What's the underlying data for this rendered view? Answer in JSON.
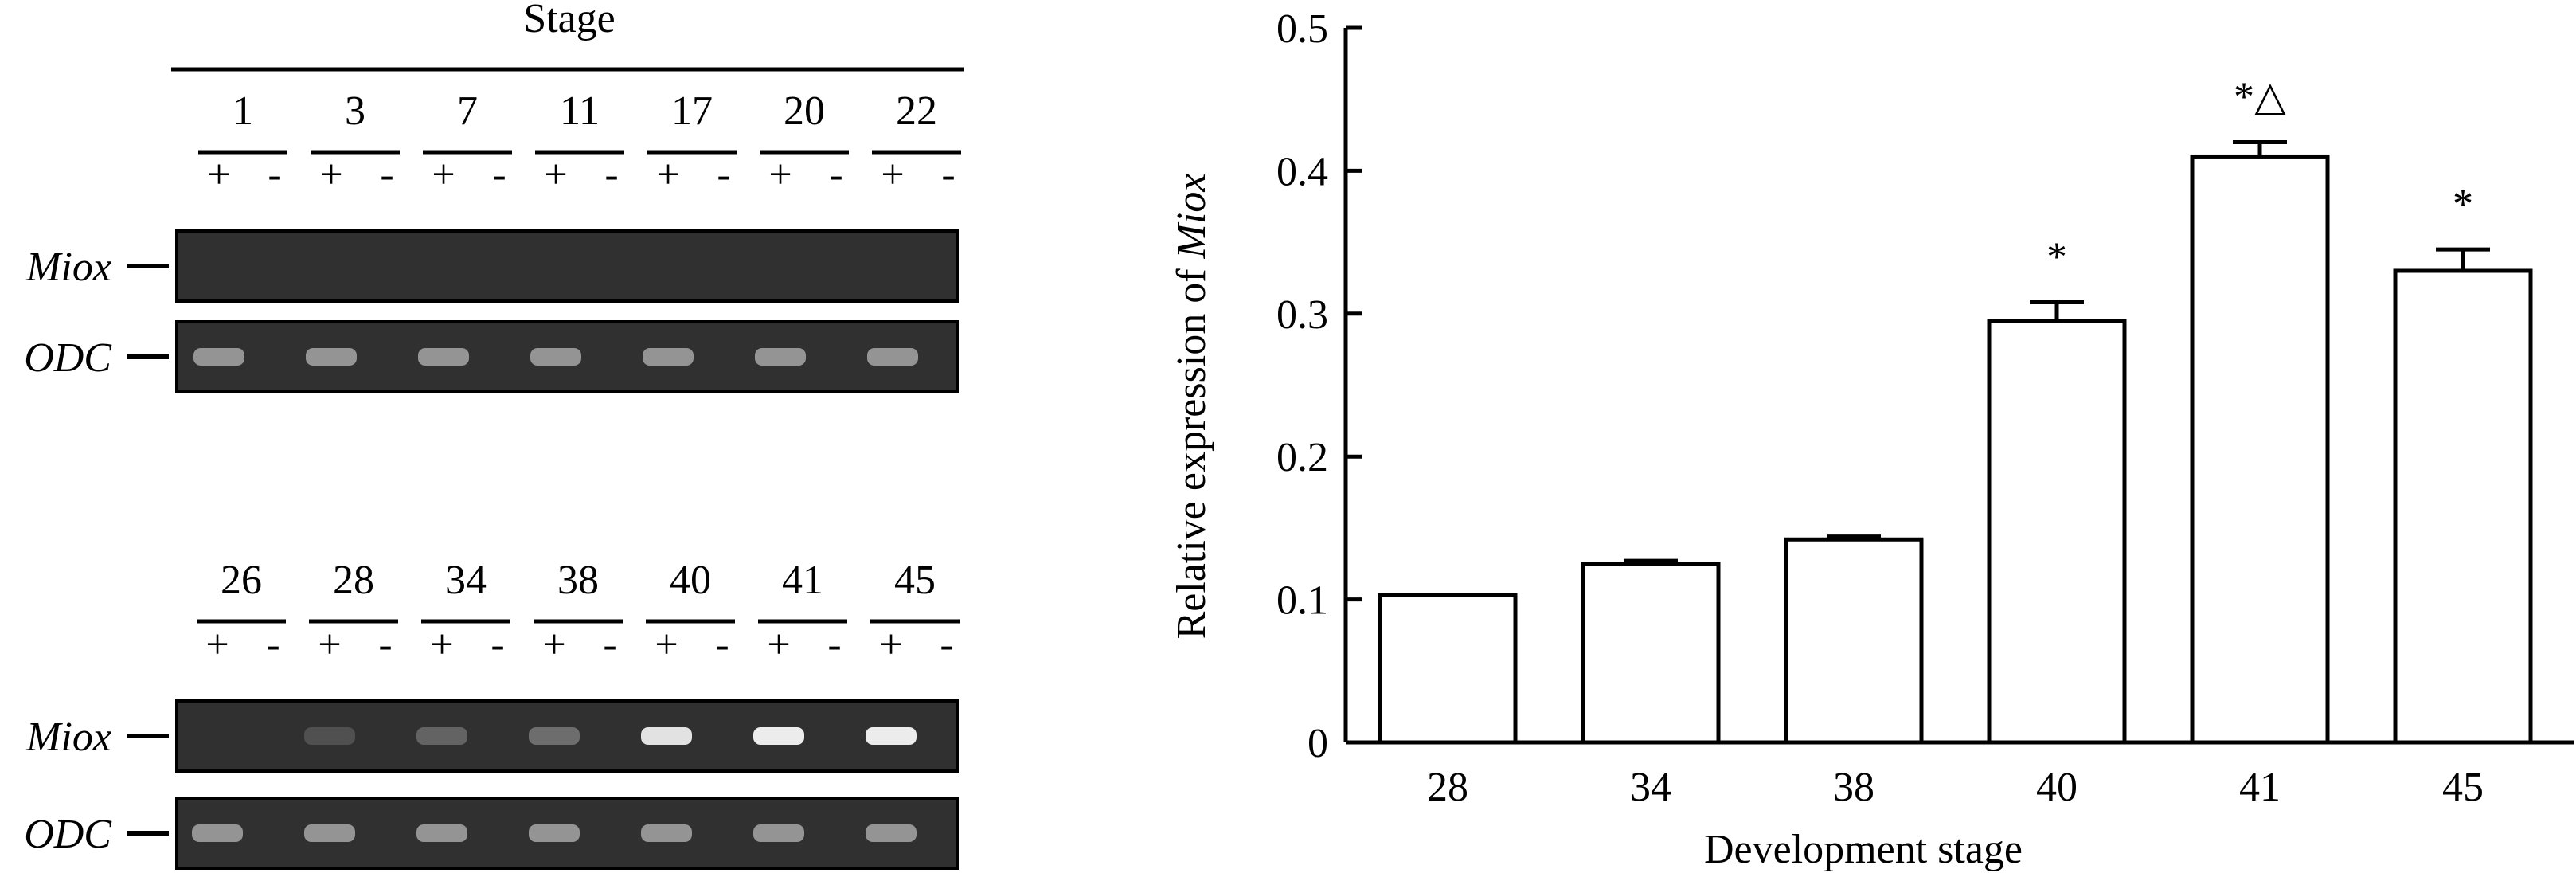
{
  "gel": {
    "title": "Stage",
    "lane_signs": [
      "+",
      "-"
    ],
    "panels": [
      {
        "stages": [
          "1",
          "3",
          "7",
          "11",
          "17",
          "20",
          "22"
        ],
        "rows": [
          {
            "label": "Miox",
            "intensity": [
              0,
              0,
              0,
              0,
              0,
              0,
              0
            ]
          },
          {
            "label": "ODC",
            "intensity": [
              0.45,
              0.45,
              0.45,
              0.45,
              0.45,
              0.45,
              0.45
            ]
          }
        ]
      },
      {
        "stages": [
          "26",
          "28",
          "34",
          "38",
          "40",
          "41",
          "45"
        ],
        "rows": [
          {
            "label": "Miox",
            "intensity": [
              0,
              0.1,
              0.2,
              0.25,
              0.85,
              0.9,
              0.9
            ]
          },
          {
            "label": "ODC",
            "intensity": [
              0.45,
              0.45,
              0.45,
              0.45,
              0.45,
              0.45,
              0.45
            ]
          }
        ]
      }
    ]
  },
  "chart_data": {
    "type": "bar",
    "categories": [
      "28",
      "34",
      "38",
      "40",
      "41",
      "45"
    ],
    "values": [
      0.103,
      0.125,
      0.142,
      0.295,
      0.41,
      0.33
    ],
    "errors": [
      0.0,
      0.002,
      0.002,
      0.013,
      0.01,
      0.015
    ],
    "annotations": [
      "",
      "",
      "",
      "*",
      "*△",
      "*"
    ],
    "xlabel": "Development stage",
    "ylabel_prefix": "Relative expression of ",
    "ylabel_italic": "Miox",
    "ylim": [
      0,
      0.5
    ],
    "yticks": [
      "0",
      "0.1",
      "0.2",
      "0.3",
      "0.4",
      "0.5"
    ],
    "grid": false
  },
  "colors": {
    "gel_background": "#303030",
    "bar_fill": "#ffffff",
    "ink": "#000000"
  }
}
